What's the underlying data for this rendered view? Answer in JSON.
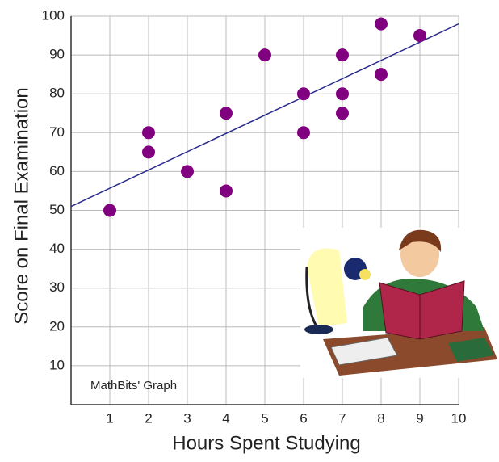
{
  "chart_data": {
    "type": "scatter",
    "x_label": "Hours Spent Studying",
    "y_label": "Score on Final Examination",
    "annotation": "MathBits' Graph",
    "xlim": [
      0,
      10
    ],
    "ylim": [
      0,
      100
    ],
    "xticks": [
      1,
      2,
      3,
      4,
      5,
      6,
      7,
      8,
      9,
      10
    ],
    "yticks": [
      10,
      20,
      30,
      40,
      50,
      60,
      70,
      80,
      90,
      100
    ],
    "grid": true,
    "series": [
      {
        "color": "#800080",
        "x": [
          1,
          2,
          2,
          3,
          4,
          4,
          5,
          6,
          6,
          7,
          7,
          7,
          8,
          8,
          9
        ],
        "values": [
          50,
          70,
          65,
          60,
          75,
          55,
          90,
          80,
          70,
          90,
          80,
          75,
          98,
          85,
          95
        ]
      }
    ],
    "trend_line": {
      "color": "#2a2a8c",
      "x": [
        0,
        10
      ],
      "values": [
        51,
        98
      ]
    }
  }
}
